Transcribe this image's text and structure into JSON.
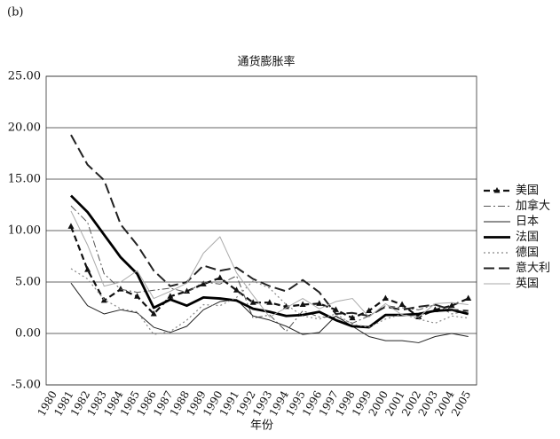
{
  "panel_label": "(b)",
  "chart_data": {
    "type": "line",
    "title": "通货膨胀率",
    "x_label": "年份",
    "categories": [
      "1980",
      "1981",
      "1982",
      "1983",
      "1984",
      "1985",
      "1986",
      "1987",
      "1988",
      "1989",
      "1990",
      "1991",
      "1992",
      "1993",
      "1994",
      "1995",
      "1996",
      "1997",
      "1998",
      "1999",
      "2000",
      "2001",
      "2002",
      "2003",
      "2004",
      "2005"
    ],
    "ylim": [
      -5,
      25
    ],
    "yticks": [
      {
        "value": -5,
        "label": "-5.00"
      },
      {
        "value": 0,
        "label": "0.00"
      },
      {
        "value": 5,
        "label": "5.00"
      },
      {
        "value": 10,
        "label": "10.00"
      },
      {
        "value": 15,
        "label": "15.00"
      },
      {
        "value": 20,
        "label": "20.00"
      },
      {
        "value": 25,
        "label": "25.00"
      }
    ],
    "grid": true,
    "legend": "right",
    "series": [
      {
        "name": "美国",
        "color": "#111111",
        "values": [
          null,
          10.4,
          6.2,
          3.2,
          4.3,
          3.6,
          1.9,
          3.6,
          4.1,
          4.8,
          5.4,
          4.2,
          3.0,
          3.0,
          2.6,
          2.8,
          2.9,
          2.3,
          1.5,
          2.2,
          3.4,
          2.8,
          1.6,
          2.3,
          2.7,
          3.4
        ]
      },
      {
        "name": "加拿大",
        "color": "#555555",
        "values": [
          null,
          12.4,
          10.8,
          5.8,
          4.3,
          4.0,
          4.2,
          4.4,
          4.0,
          5.0,
          4.8,
          5.6,
          1.5,
          1.8,
          0.2,
          2.2,
          1.6,
          1.6,
          1.0,
          1.7,
          2.7,
          2.5,
          2.3,
          2.8,
          1.9,
          2.2
        ]
      },
      {
        "name": "日本",
        "color": "#222222",
        "values": [
          null,
          4.9,
          2.7,
          1.9,
          2.3,
          2.0,
          0.6,
          0.1,
          0.7,
          2.3,
          3.1,
          3.3,
          1.7,
          1.3,
          0.7,
          -0.1,
          0.1,
          1.7,
          0.7,
          -0.3,
          -0.7,
          -0.7,
          -0.9,
          -0.3,
          0.0,
          -0.3
        ]
      },
      {
        "name": "法国",
        "color": "#000000",
        "values": [
          null,
          13.4,
          11.8,
          9.6,
          7.4,
          5.8,
          2.5,
          3.3,
          2.7,
          3.5,
          3.4,
          3.2,
          2.4,
          2.1,
          1.7,
          1.8,
          2.1,
          1.3,
          0.7,
          0.6,
          1.8,
          1.8,
          1.9,
          2.2,
          2.3,
          1.9
        ]
      },
      {
        "name": "德国",
        "color": "#888888",
        "values": [
          null,
          6.3,
          5.3,
          3.3,
          2.4,
          2.1,
          -0.1,
          0.2,
          1.3,
          2.8,
          2.7,
          3.5,
          5.1,
          4.4,
          2.8,
          1.7,
          1.4,
          1.9,
          0.9,
          0.6,
          1.4,
          1.9,
          1.4,
          1.0,
          1.7,
          1.5
        ]
      },
      {
        "name": "意大利",
        "color": "#222222",
        "values": [
          null,
          19.3,
          16.4,
          14.9,
          10.6,
          8.6,
          6.1,
          4.6,
          5.0,
          6.6,
          6.1,
          6.4,
          5.3,
          4.6,
          4.1,
          5.2,
          4.0,
          1.9,
          2.0,
          1.7,
          2.6,
          2.3,
          2.6,
          2.8,
          2.3,
          2.2
        ]
      },
      {
        "name": "英国",
        "color": "#aaaaaa",
        "values": [
          null,
          11.9,
          8.6,
          4.6,
          5.0,
          6.1,
          3.4,
          4.1,
          4.9,
          7.8,
          9.4,
          5.9,
          3.7,
          1.6,
          2.5,
          3.4,
          2.4,
          3.1,
          3.4,
          1.6,
          2.9,
          1.8,
          1.6,
          2.9,
          3.0,
          2.8
        ]
      }
    ]
  }
}
